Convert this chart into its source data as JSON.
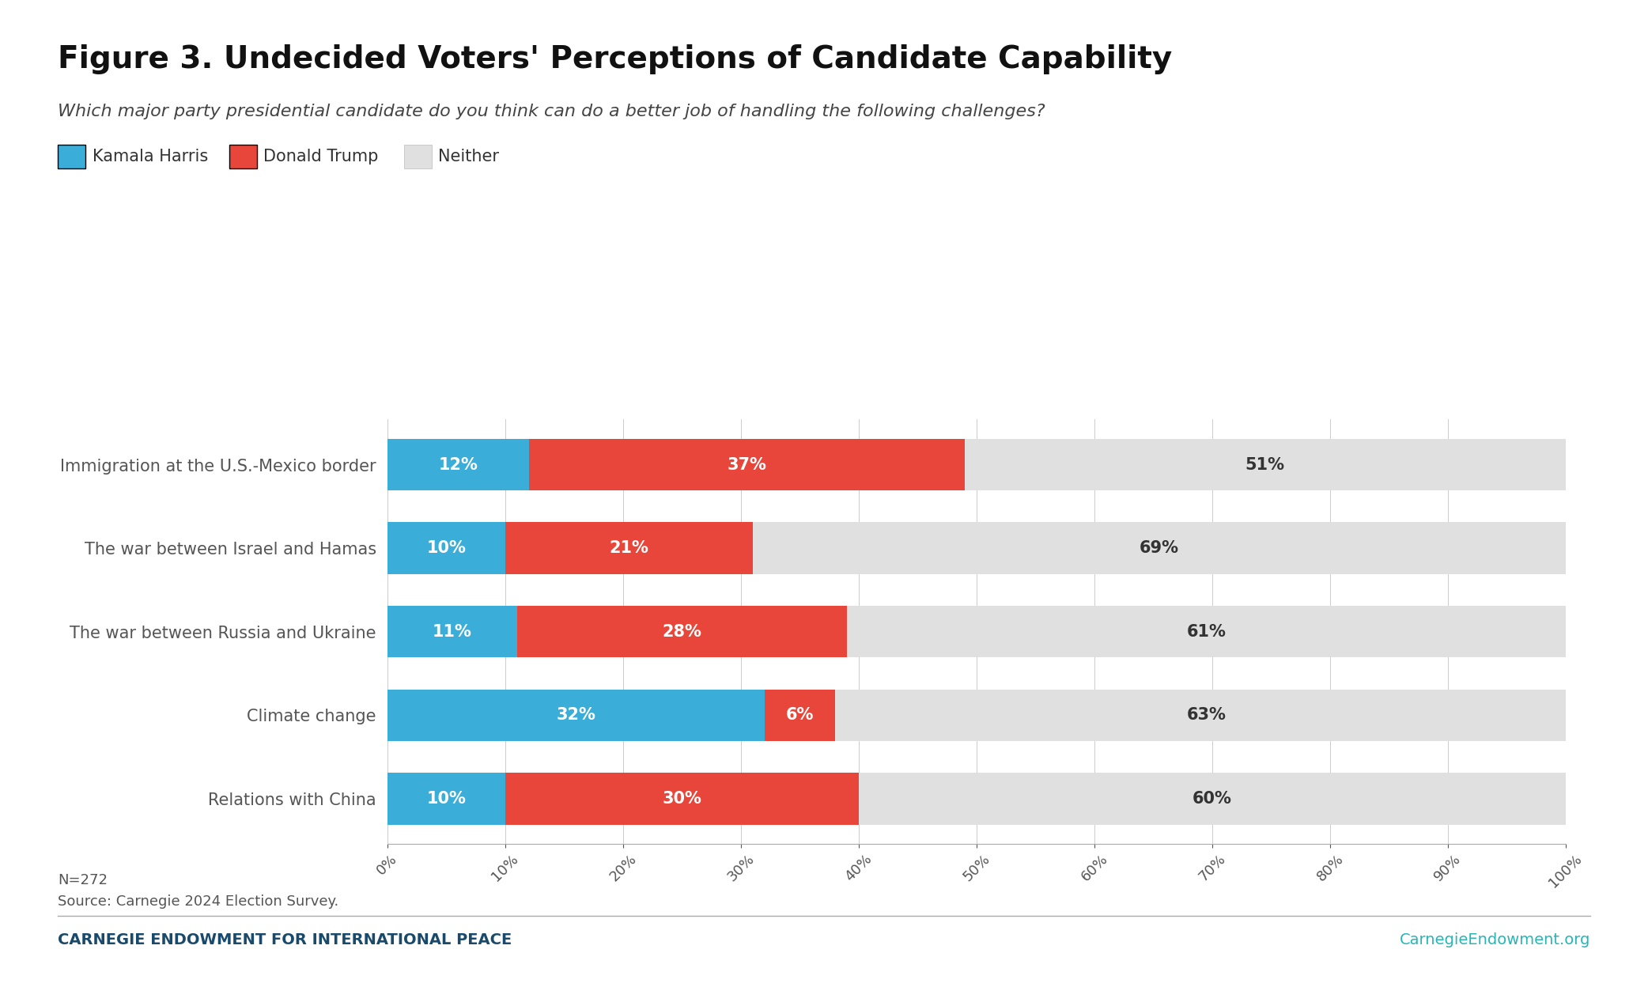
{
  "title": "Figure 3. Undecided Voters' Perceptions of Candidate Capability",
  "subtitle": "Which major party presidential candidate do you think can do a better job of handling the following challenges?",
  "categories": [
    "Immigration at the U.S.-Mexico border",
    "The war between Israel and Hamas",
    "The war between Russia and Ukraine",
    "Climate change",
    "Relations with China"
  ],
  "harris": [
    12,
    10,
    11,
    32,
    10
  ],
  "trump": [
    37,
    21,
    28,
    6,
    30
  ],
  "neither": [
    51,
    69,
    61,
    63,
    60
  ],
  "harris_color": "#3aadd9",
  "trump_color": "#e8463a",
  "neither_color": "#e0e0e0",
  "harris_label": "Kamala Harris",
  "trump_label": "Donald Trump",
  "neither_label": "Neither",
  "footnote1": "N=272",
  "footnote2": "Source: Carnegie 2024 Election Survey.",
  "footer_left": "CARNEGIE ENDOWMENT FOR INTERNATIONAL PEACE",
  "footer_right": "CarnegieEndowment.org",
  "footer_left_color": "#1a4a6b",
  "footer_right_color": "#2ab5b5",
  "background_color": "#ffffff",
  "bar_label_color_white": "#ffffff",
  "bar_label_color_black": "#333333",
  "title_fontsize": 28,
  "subtitle_fontsize": 16,
  "legend_fontsize": 15,
  "tick_label_fontsize": 13,
  "bar_label_fontsize": 15,
  "category_label_fontsize": 15,
  "footnote_fontsize": 13,
  "footer_fontsize": 14
}
